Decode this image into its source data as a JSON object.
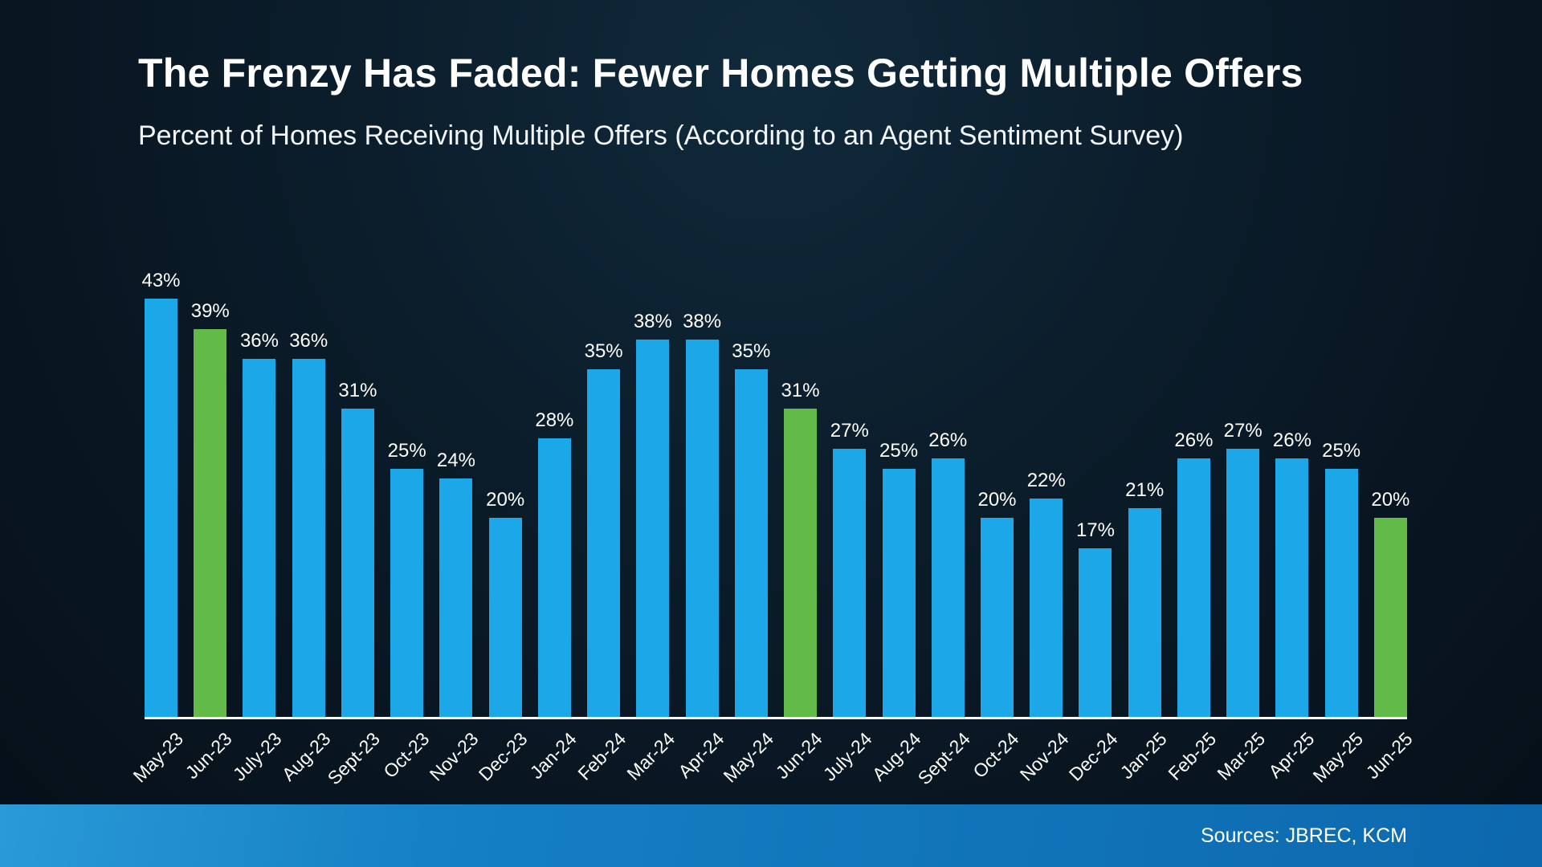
{
  "header": {
    "title": "The Frenzy Has Faded: Fewer Homes Getting Multiple Offers",
    "subtitle": "Percent of Homes Receiving Multiple Offers (According to an Agent Sentiment Survey)"
  },
  "chart_data": {
    "type": "bar",
    "title": "Percent of Homes Receiving Multiple Offers (According to an Agent Sentiment Survey)",
    "categories": [
      "May-23",
      "Jun-23",
      "July-23",
      "Aug-23",
      "Sept-23",
      "Oct-23",
      "Nov-23",
      "Dec-23",
      "Jan-24",
      "Feb-24",
      "Mar-24",
      "Apr-24",
      "May-24",
      "Jun-24",
      "July-24",
      "Aug-24",
      "Sept-24",
      "Oct-24",
      "Nov-24",
      "Dec-24",
      "Jan-25",
      "Feb-25",
      "Mar-25",
      "Apr-25",
      "May-25",
      "Jun-25"
    ],
    "values": [
      43,
      39,
      36,
      36,
      31,
      25,
      24,
      20,
      28,
      35,
      38,
      38,
      35,
      31,
      27,
      25,
      26,
      20,
      22,
      17,
      21,
      26,
      27,
      26,
      25,
      20
    ],
    "value_suffix": "%",
    "highlight_categories": [
      "Jun-23",
      "Jun-24",
      "Jun-25"
    ],
    "bar_color": "#1ba7e8",
    "highlight_color": "#62bb46",
    "xlabel": "",
    "ylabel": "",
    "ylim": [
      0,
      45
    ],
    "grid": false,
    "legend": false,
    "data_labels": true,
    "tick_rotation_deg": -45
  },
  "footer": {
    "sources_label": "Sources: JBREC, KCM"
  }
}
